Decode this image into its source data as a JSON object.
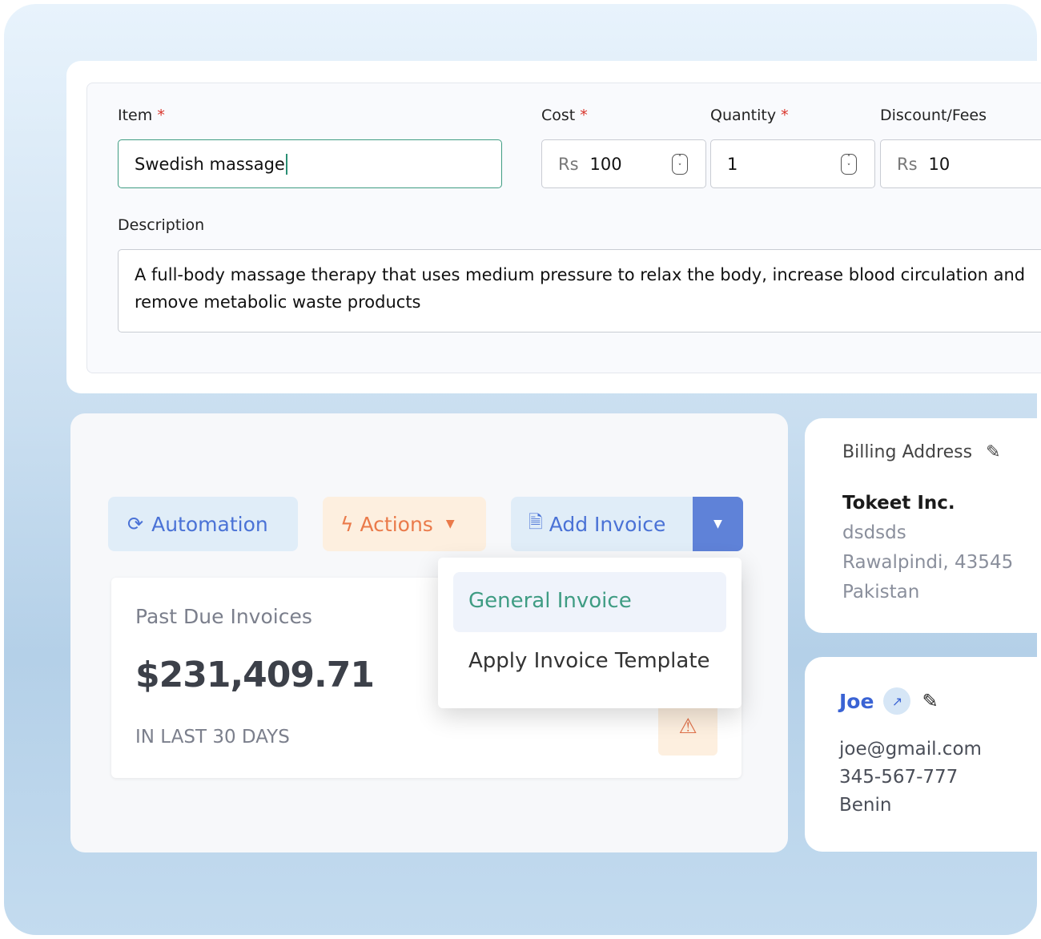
{
  "item_form": {
    "item_label": "Item",
    "item_value": "Swedish massage",
    "cost_label": "Cost",
    "cost_prefix": "Rs",
    "cost_value": "100",
    "quantity_label": "Quantity",
    "quantity_value": "1",
    "discount_label": "Discount/Fees",
    "discount_prefix": "Rs",
    "discount_value": "10",
    "required_mark": "*",
    "description_label": "Description",
    "description_value": "A full-body massage therapy that uses medium pressure to relax the body, increase blood circulation and remove metabolic waste products"
  },
  "toolbar": {
    "automation": "Automation",
    "actions": "Actions",
    "add_invoice": "Add Invoice"
  },
  "dropdown": {
    "items": [
      "General Invoice",
      "Apply Invoice Template"
    ]
  },
  "past_due": {
    "title": "Past Due Invoices",
    "amount": "$231,409.71",
    "period": "IN LAST 30 DAYS"
  },
  "billing": {
    "title": "Billing Address",
    "company": "Tokeet Inc.",
    "line1": "dsdsds",
    "line2": "Rawalpindi, 43545",
    "country": "Pakistan"
  },
  "contact": {
    "name": "Joe",
    "email": "joe@gmail.com",
    "phone": "345-567-777",
    "country": "Benin"
  },
  "colors": {
    "accent_green": "#3f9c83",
    "accent_blue": "#4a72d6",
    "actions_orange": "#ea7a4a"
  }
}
